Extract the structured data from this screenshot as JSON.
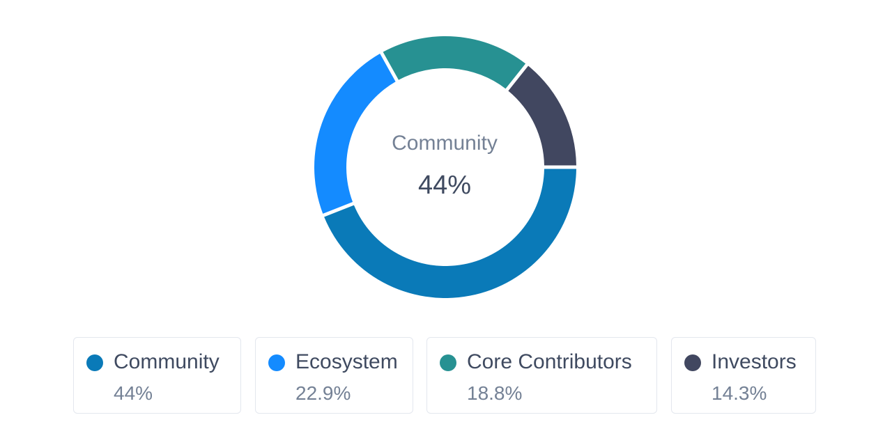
{
  "chart_data": {
    "type": "pie",
    "donut": true,
    "title": "",
    "center": {
      "label": "Community",
      "value": "44%"
    },
    "series": [
      {
        "name": "Community",
        "value": 44,
        "label": "44%",
        "color": "#0a7ab8"
      },
      {
        "name": "Ecosystem",
        "value": 22.9,
        "label": "22.9%",
        "color": "#148bff"
      },
      {
        "name": "Core Contributors",
        "value": 18.8,
        "label": "18.8%",
        "color": "#279192"
      },
      {
        "name": "Investors",
        "value": 14.3,
        "label": "14.3%",
        "color": "#414760"
      }
    ],
    "legend_position": "bottom"
  }
}
